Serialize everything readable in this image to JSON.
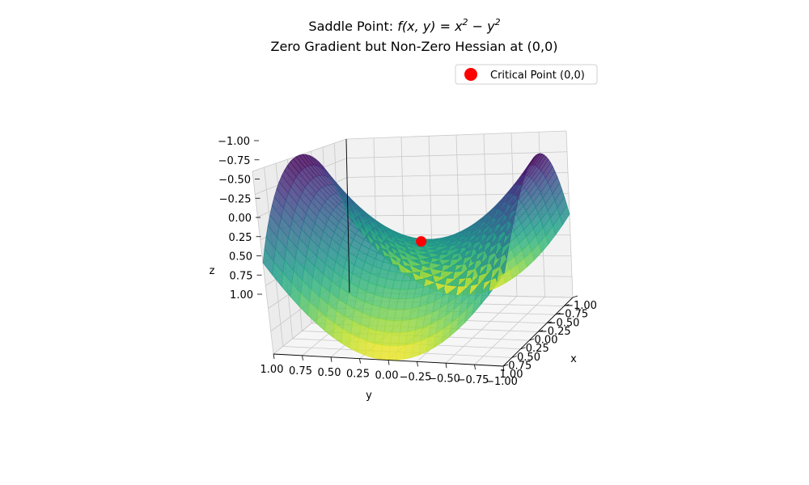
{
  "chart_data": {
    "type": "surface3d",
    "title_prefix": "Saddle Point: ",
    "title_func": "f(x, y) = x",
    "title_exp": "2",
    "title_mid": " − y",
    "subtitle": "Zero Gradient but Non-Zero Hessian at (0,0)",
    "xlabel": "x",
    "ylabel": "y",
    "zlabel": "z",
    "x_range": [
      -1,
      1
    ],
    "y_range": [
      -1,
      1
    ],
    "zlim": [
      -1,
      1
    ],
    "function": "x^2 - y^2",
    "grid": true,
    "colormap": "viridis",
    "x_ticks": [
      "−1.00",
      "−0.75",
      "−0.50",
      "−0.25",
      "0.00",
      "0.25",
      "0.50",
      "0.75",
      "1.00"
    ],
    "y_ticks": [
      "1.00",
      "0.75",
      "0.50",
      "0.25",
      "0.00",
      "−0.25",
      "−0.50",
      "−0.75",
      "−1.00"
    ],
    "z_ticks": [
      "−1.00",
      "−0.75",
      "−0.50",
      "−0.25",
      "0.00",
      "0.25",
      "0.50",
      "0.75",
      "1.00"
    ],
    "critical_point": {
      "x": 0,
      "y": 0,
      "z": 0,
      "color": "#ff0000"
    },
    "legend": {
      "placement": "top-right",
      "label": "Critical Point (0,0)"
    }
  }
}
